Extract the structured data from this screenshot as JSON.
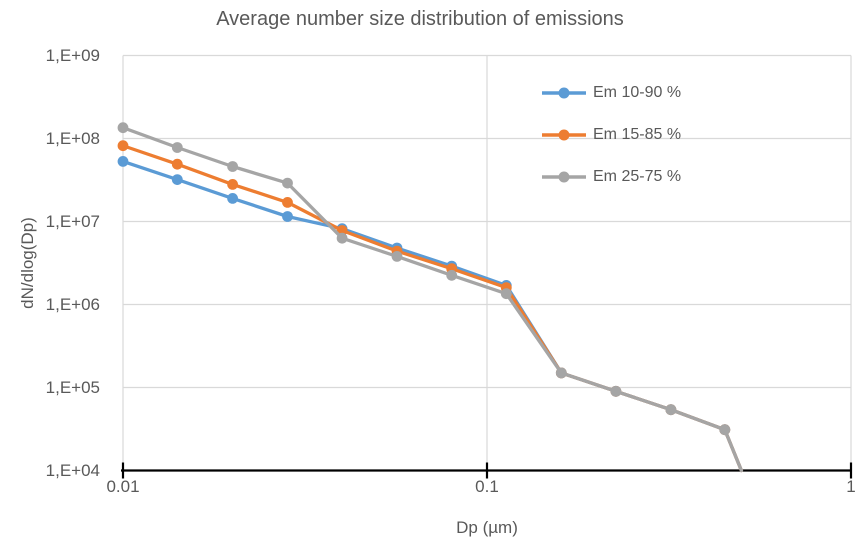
{
  "title": "Average number size distribution of emissions",
  "axes": {
    "x_label": "Dp (µm)",
    "y_label": "dN/dlog(Dp)",
    "x_tick_labels": [
      "0.01",
      "0.1",
      "1"
    ],
    "y_tick_labels": [
      "1,E+04",
      "1,E+05",
      "1,E+06",
      "1,E+07",
      "1,E+08",
      "1,E+09"
    ]
  },
  "colors": {
    "series_blue": "#5B9BD5",
    "series_orange": "#ED7D31",
    "series_gray": "#A5A5A5",
    "text": "#595959",
    "gridline": "#D9D9D9",
    "axis_line": "#000000"
  },
  "chart_data": {
    "type": "line",
    "title": "Average number size distribution of emissions",
    "xlabel": "Dp (µm)",
    "ylabel": "dN/dlog(Dp)",
    "x_scale": "log",
    "y_scale": "log",
    "xlim": [
      0.01,
      1
    ],
    "ylim": [
      10000,
      1000000000
    ],
    "grid": true,
    "legend_position": "inside-top-right",
    "x": [
      0.01,
      0.0141,
      0.02,
      0.0283,
      0.04,
      0.0566,
      0.08,
      0.113,
      0.16,
      0.226,
      0.32,
      0.45
    ],
    "series": [
      {
        "name": "Em 10-90 %",
        "color": "#5B9BD5",
        "values": [
          53000000.0,
          32000000.0,
          19000000.0,
          11500000.0,
          8200000.0,
          4800000.0,
          2900000.0,
          1700000.0,
          150000.0,
          90000.0,
          54000.0,
          31000.0
        ]
      },
      {
        "name": "Em 15-85 %",
        "color": "#ED7D31",
        "values": [
          82000000.0,
          49000000.0,
          28000000.0,
          17000000.0,
          7800000.0,
          4400000.0,
          2700000.0,
          1600000.0,
          150000.0,
          90000.0,
          54000.0,
          31000.0
        ]
      },
      {
        "name": "Em 25-75 %",
        "color": "#A5A5A5",
        "values": [
          135000000.0,
          78000000.0,
          46000000.0,
          29000000.0,
          6300000.0,
          3800000.0,
          2250000.0,
          1350000.0,
          150000.0,
          90000.0,
          54000.0,
          31000.0
        ]
      }
    ],
    "clipped_line_end": {
      "x": 0.5,
      "y": 10000
    }
  }
}
